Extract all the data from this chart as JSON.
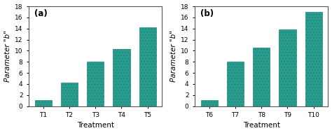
{
  "chart_a": {
    "label": "(a)",
    "categories": [
      "T1",
      "T2",
      "T3",
      "T4",
      "T5"
    ],
    "values": [
      1.1,
      4.3,
      8.0,
      10.3,
      14.2
    ],
    "xlabel": "Treatment",
    "ylabel": "Parameter \"b\"",
    "ylim": [
      0,
      18
    ],
    "yticks": [
      0,
      2,
      4,
      6,
      8,
      10,
      12,
      14,
      16,
      18
    ]
  },
  "chart_b": {
    "label": "(b)",
    "categories": [
      "T6",
      "T7",
      "T8",
      "T9",
      "T10"
    ],
    "values": [
      1.1,
      8.0,
      10.5,
      13.9,
      17.0
    ],
    "xlabel": "Treatment",
    "ylabel": "Parameter \"b\"",
    "ylim": [
      0,
      18
    ],
    "yticks": [
      0,
      2,
      4,
      6,
      8,
      10,
      12,
      14,
      16,
      18
    ]
  },
  "bar_color": "#2a9d8f",
  "hatch": "....",
  "bar_edgecolor": "#1e8a7a",
  "background_color": "#ffffff",
  "label_fontsize": 7.5,
  "tick_fontsize": 6.5,
  "annot_fontsize": 8.5,
  "bar_width": 0.65
}
